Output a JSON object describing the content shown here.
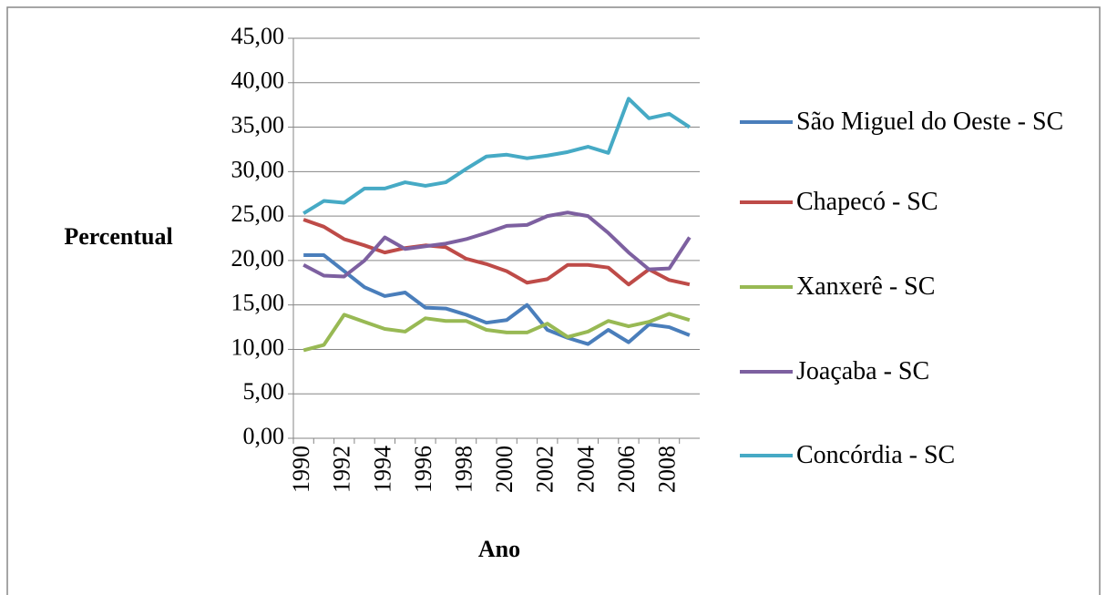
{
  "chart_data": {
    "type": "line",
    "x_label": "Ano",
    "y_label": "Percentual",
    "categories": [
      "1990",
      null,
      "1992",
      null,
      "1994",
      null,
      "1996",
      null,
      "1998",
      null,
      "2000",
      null,
      "2002",
      null,
      "2004",
      null,
      "2006",
      null,
      "2008",
      null
    ],
    "series": [
      {
        "name": "São Miguel do Oeste - SC",
        "color": "#4a7ebb",
        "values": [
          20.6,
          20.6,
          18.8,
          17.0,
          16.0,
          16.4,
          14.7,
          14.6,
          13.9,
          13.0,
          13.3,
          15.0,
          12.2,
          11.3,
          10.6,
          12.2,
          10.8,
          12.8,
          12.5,
          11.6
        ]
      },
      {
        "name": "Chapecó - SC",
        "color": "#be4b48",
        "values": [
          24.6,
          23.8,
          22.4,
          21.7,
          20.9,
          21.4,
          21.7,
          21.5,
          20.2,
          19.6,
          18.8,
          17.5,
          17.9,
          19.5,
          19.5,
          19.2,
          17.3,
          19.0,
          17.8,
          17.3
        ]
      },
      {
        "name": "Xanxerê - SC",
        "color": "#98b954",
        "values": [
          9.9,
          10.5,
          13.9,
          13.1,
          12.3,
          12.0,
          13.5,
          13.2,
          13.2,
          12.2,
          11.9,
          11.9,
          12.9,
          11.4,
          12.0,
          13.2,
          12.6,
          13.1,
          14.0,
          13.3
        ]
      },
      {
        "name": "Joaçaba - SC",
        "color": "#7d60a0",
        "values": [
          19.5,
          18.3,
          18.2,
          20.0,
          22.6,
          21.3,
          21.6,
          21.9,
          22.4,
          23.1,
          23.9,
          24.0,
          25.0,
          25.4,
          25.0,
          23.1,
          20.9,
          19.0,
          19.1,
          22.6
        ]
      },
      {
        "name": "Concórdia - SC",
        "color": "#46aac5",
        "values": [
          25.3,
          26.7,
          26.5,
          28.1,
          28.1,
          28.8,
          28.4,
          28.8,
          30.3,
          31.7,
          31.9,
          31.5,
          31.8,
          32.2,
          32.8,
          32.1,
          38.2,
          36.0,
          36.5,
          35.0
        ]
      }
    ],
    "ylim": [
      0,
      45
    ],
    "yticks": [
      {
        "value": 0,
        "label": "0,00"
      },
      {
        "value": 5,
        "label": "5,00"
      },
      {
        "value": 10,
        "label": "10,00"
      },
      {
        "value": 15,
        "label": "15,00"
      },
      {
        "value": 20,
        "label": "20,00"
      },
      {
        "value": 25,
        "label": "25,00"
      },
      {
        "value": 30,
        "label": "30,00"
      },
      {
        "value": 35,
        "label": "35,00"
      },
      {
        "value": 40,
        "label": "40,00"
      },
      {
        "value": 45,
        "label": "45,00"
      }
    ],
    "grid": true
  }
}
